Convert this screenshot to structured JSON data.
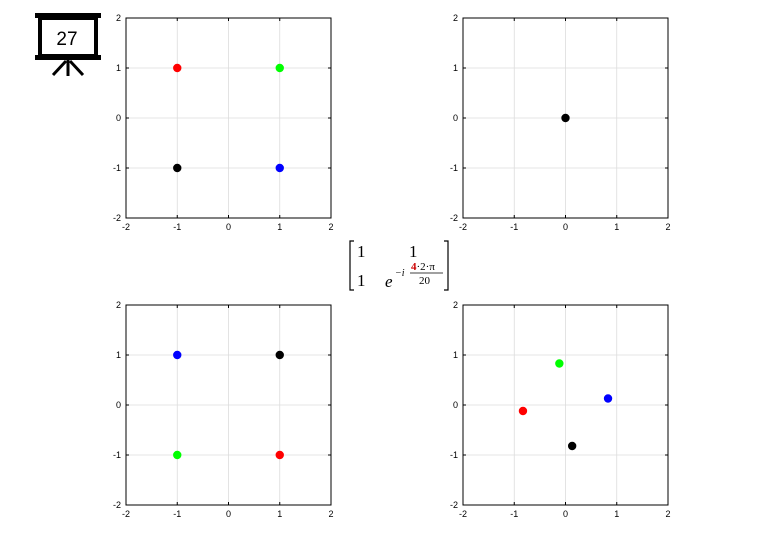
{
  "slide_badge": {
    "number": "27",
    "icon": "presentation-board-icon"
  },
  "chart_data": [
    {
      "type": "scatter",
      "xlim": [
        -2,
        2
      ],
      "ylim": [
        -2,
        2
      ],
      "xticks": [
        "-2",
        "-1",
        "0",
        "1",
        "2"
      ],
      "yticks": [
        "2",
        "1",
        "0",
        "-1",
        "-2"
      ],
      "grid": true,
      "points": [
        {
          "x": -1,
          "y": 1,
          "color": "#ff0000"
        },
        {
          "x": 1,
          "y": 1,
          "color": "#00ff00"
        },
        {
          "x": -1,
          "y": -1,
          "color": "#000000"
        },
        {
          "x": 1,
          "y": -1,
          "color": "#0000ff"
        }
      ]
    },
    {
      "type": "scatter",
      "xlim": [
        -2,
        2
      ],
      "ylim": [
        -2,
        2
      ],
      "xticks": [
        "-2",
        "-1",
        "0",
        "1",
        "2"
      ],
      "yticks": [
        "2",
        "1",
        "0",
        "-1",
        "-2"
      ],
      "grid": true,
      "points": [
        {
          "x": 0,
          "y": 0,
          "color": "#000000"
        }
      ]
    },
    {
      "type": "scatter",
      "xlim": [
        -2,
        2
      ],
      "ylim": [
        -2,
        2
      ],
      "xticks": [
        "-2",
        "-1",
        "0",
        "1",
        "2"
      ],
      "yticks": [
        "2",
        "1",
        "0",
        "-1",
        "-2"
      ],
      "grid": true,
      "points": [
        {
          "x": -1,
          "y": 1,
          "color": "#0000ff"
        },
        {
          "x": 1,
          "y": 1,
          "color": "#000000"
        },
        {
          "x": -1,
          "y": -1,
          "color": "#00ff00"
        },
        {
          "x": 1,
          "y": -1,
          "color": "#ff0000"
        }
      ]
    },
    {
      "type": "scatter",
      "xlim": [
        -2,
        2
      ],
      "ylim": [
        -2,
        2
      ],
      "xticks": [
        "-2",
        "-1",
        "0",
        "1",
        "2"
      ],
      "yticks": [
        "2",
        "1",
        "0",
        "-1",
        "-2"
      ],
      "grid": true,
      "points": [
        {
          "x": -0.12,
          "y": 0.83,
          "color": "#00ff00"
        },
        {
          "x": -0.83,
          "y": -0.12,
          "color": "#ff0000"
        },
        {
          "x": 0.83,
          "y": 0.13,
          "color": "#0000ff"
        },
        {
          "x": 0.13,
          "y": -0.82,
          "color": "#000000"
        }
      ]
    }
  ],
  "matrix": {
    "r1c1": "1",
    "r1c2": "1",
    "r2c1": "1",
    "base": "e",
    "exp_prefix": "−i",
    "num_highlight": "4",
    "num_rest": "·2·π",
    "den": "20",
    "highlight_color": "#cc0000"
  }
}
